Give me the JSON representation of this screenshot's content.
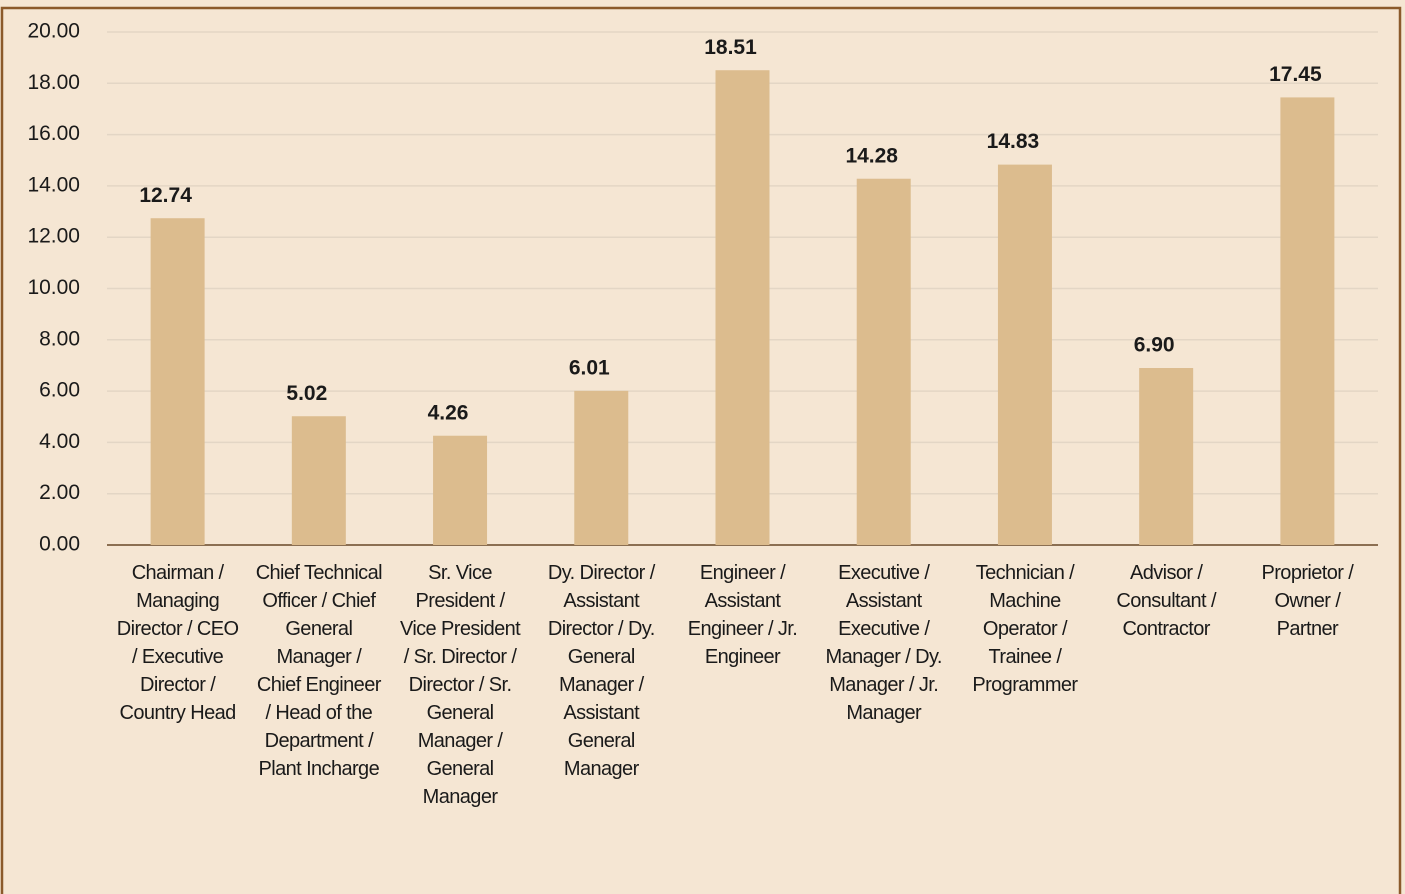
{
  "chart_data": {
    "type": "bar",
    "categories": [
      "Chairman / Managing Director / CEO / Executive Director / Country Head",
      "Chief Technical Officer / Chief General Manager / Chief Engineer / Head of the Department / Plant Incharge",
      "Sr. Vice President / Vice President / Sr. Director / Director / Sr. General Manager / General Manager",
      "Dy. Director / Assistant Director / Dy. General Manager / Assistant General Manager",
      "Engineer / Assistant Engineer / Jr. Engineer",
      "Executive / Assistant Executive / Manager / Dy. Manager / Jr. Manager",
      "Technician / Machine Operator / Trainee / Programmer",
      "Advisor / Consultant / Contractor",
      "Proprietor / Owner / Partner"
    ],
    "values": [
      12.74,
      5.02,
      4.26,
      6.01,
      18.51,
      14.28,
      14.83,
      6.9,
      17.45
    ],
    "value_labels": [
      "12.74",
      "5.02",
      "4.26",
      "6.01",
      "18.51",
      "14.28",
      "14.83",
      "6.90",
      "17.45"
    ],
    "color": "#dcbc8e",
    "ylim": [
      0,
      20
    ],
    "yticks": [
      {
        "value": 0,
        "label": "0.00"
      },
      {
        "value": 2,
        "label": "2.00"
      },
      {
        "value": 4,
        "label": "4.00"
      },
      {
        "value": 6,
        "label": "6.00"
      },
      {
        "value": 8,
        "label": "8.00"
      },
      {
        "value": 10,
        "label": "10.00"
      },
      {
        "value": 12,
        "label": "12.00"
      },
      {
        "value": 14,
        "label": "14.00"
      },
      {
        "value": 16,
        "label": "16.00"
      },
      {
        "value": 18,
        "label": "18.00"
      },
      {
        "value": 20,
        "label": "20.00"
      }
    ],
    "grid": true
  }
}
